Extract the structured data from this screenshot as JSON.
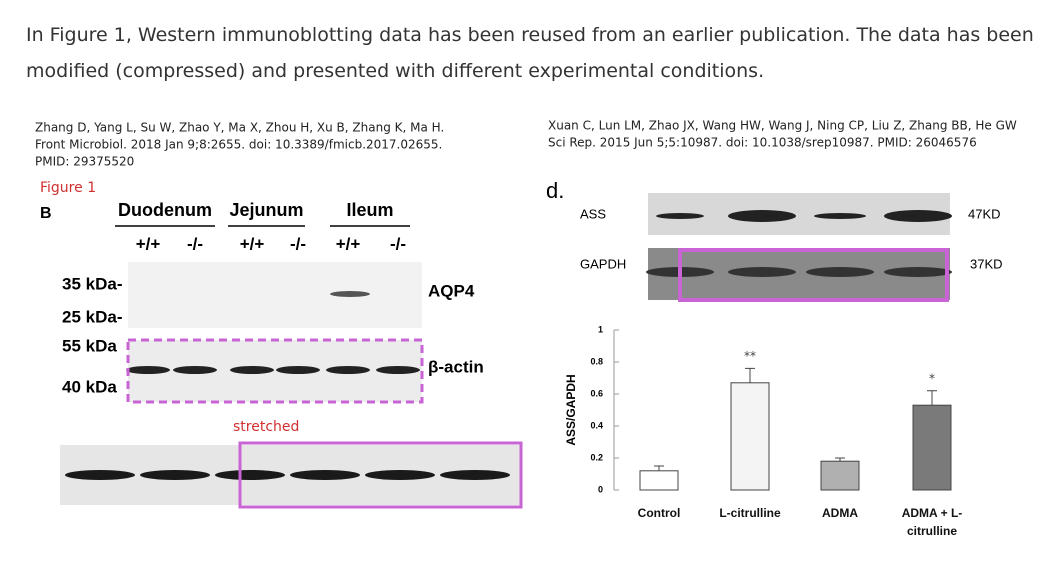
{
  "intro": "In Figure 1, Western immunoblotting data has been reused from an earlier publication. The data has been modified (compressed) and presented with different experimental conditions.",
  "left": {
    "citation": [
      "Zhang D, Yang L, Su W, Zhao Y, Ma X, Zhou H, Xu B, Zhang K, Ma H.",
      "Front Microbiol. 2018 Jan 9;8:2655. doi: 10.3389/fmicb.2017.02655.",
      "PMID: 29375520"
    ],
    "figure_label": "Figure 1",
    "panel": "B",
    "groups": [
      "Duodenum",
      "Jejunum",
      "Ileum"
    ],
    "genotypes": [
      "+/+",
      "-/-",
      "+/+",
      "-/-",
      "+/+",
      "-/-"
    ],
    "markers": [
      "35 kDa-",
      "25 kDa-",
      "55 kDa",
      "40 kDa"
    ],
    "proteins": [
      "AQP4",
      "β-actin"
    ],
    "note": "stretched"
  },
  "right": {
    "citation": [
      "Xuan C, Lun LM, Zhao JX, Wang HW, Wang J, Ning CP, Liu Z, Zhang BB, He GW",
      "Sci Rep. 2015 Jun 5;5:10987. doi: 10.1038/srep10987. PMID: 26046576"
    ],
    "panel": "d.",
    "blots": [
      {
        "protein": "ASS",
        "size": "47KD"
      },
      {
        "protein": "GAPDH",
        "size": "37KD"
      }
    ],
    "chart": {
      "type": "bar",
      "y_label": "ASS/GAPDH",
      "categories": [
        "Control",
        "L-citrulline",
        "ADMA",
        "ADMA + L-citrulline"
      ],
      "values": [
        0.12,
        0.67,
        0.18,
        0.53
      ],
      "errors": [
        0.03,
        0.09,
        0.02,
        0.09
      ],
      "colors": [
        "#ffffff",
        "#f4f4f4",
        "#b0b0b0",
        "#7a7a7a"
      ],
      "annotations": [
        null,
        "**",
        null,
        "*"
      ],
      "ylim": [
        0,
        1
      ],
      "yticks": [
        0,
        0.2,
        0.4,
        0.6,
        0.8,
        1
      ]
    }
  }
}
